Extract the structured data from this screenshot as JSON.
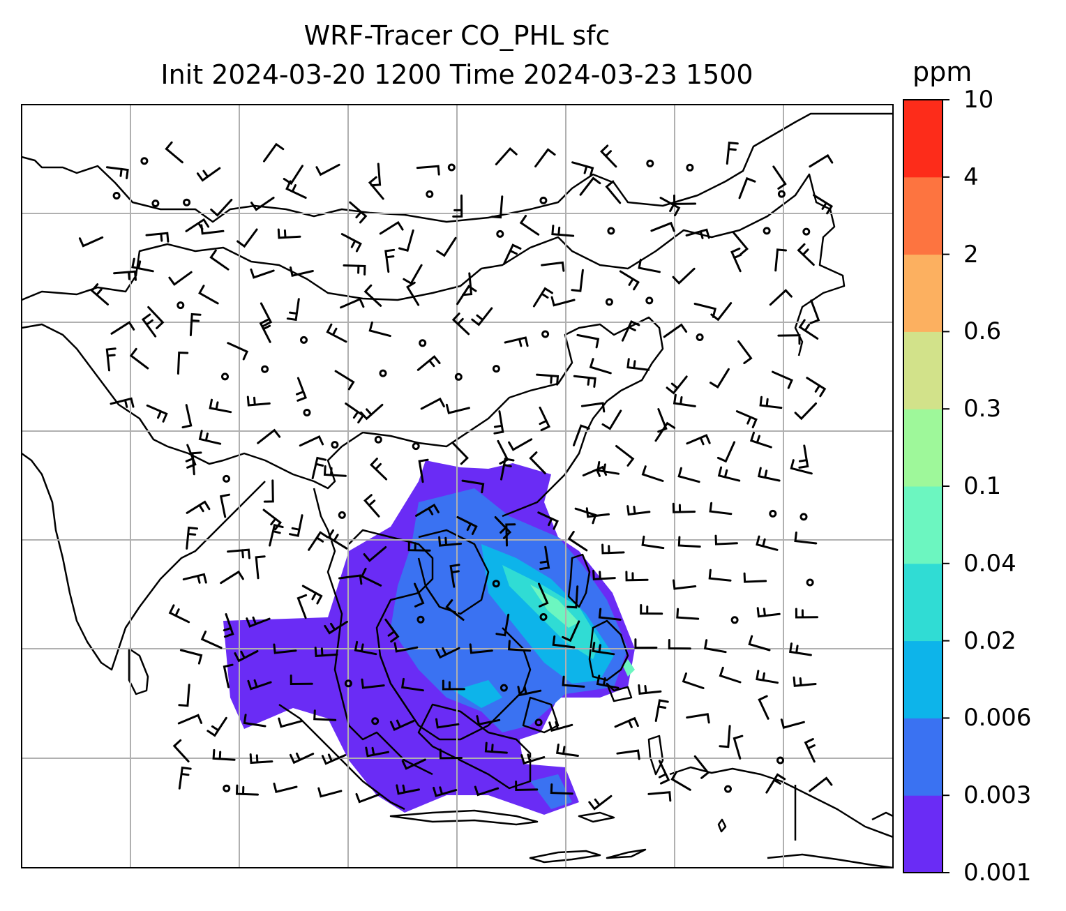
{
  "title": {
    "line1": "WRF-Tracer CO_PHL sfc",
    "line2": "Init 2024-03-20 1200 Time 2024-03-23 1500"
  },
  "colorbar": {
    "unit": "ppm",
    "ticks": [
      "10",
      "4",
      "2",
      "0.6",
      "0.3",
      "0.1",
      "0.04",
      "0.02",
      "0.006",
      "0.003",
      "0.001"
    ],
    "colors": [
      "#6a2cf5",
      "#3a72f2",
      "#0db4ea",
      "#30dcd4",
      "#6cf6c0",
      "#9ef89a",
      "#d2e28a",
      "#fcb060",
      "#fd7440",
      "#fd2c1a"
    ]
  },
  "map": {
    "region": "East / Southeast Asia",
    "gridlines": true,
    "plume_levels_shown": [
      "0.001",
      "0.003",
      "0.006",
      "0.02",
      "0.04"
    ],
    "wind_barbs": true
  }
}
